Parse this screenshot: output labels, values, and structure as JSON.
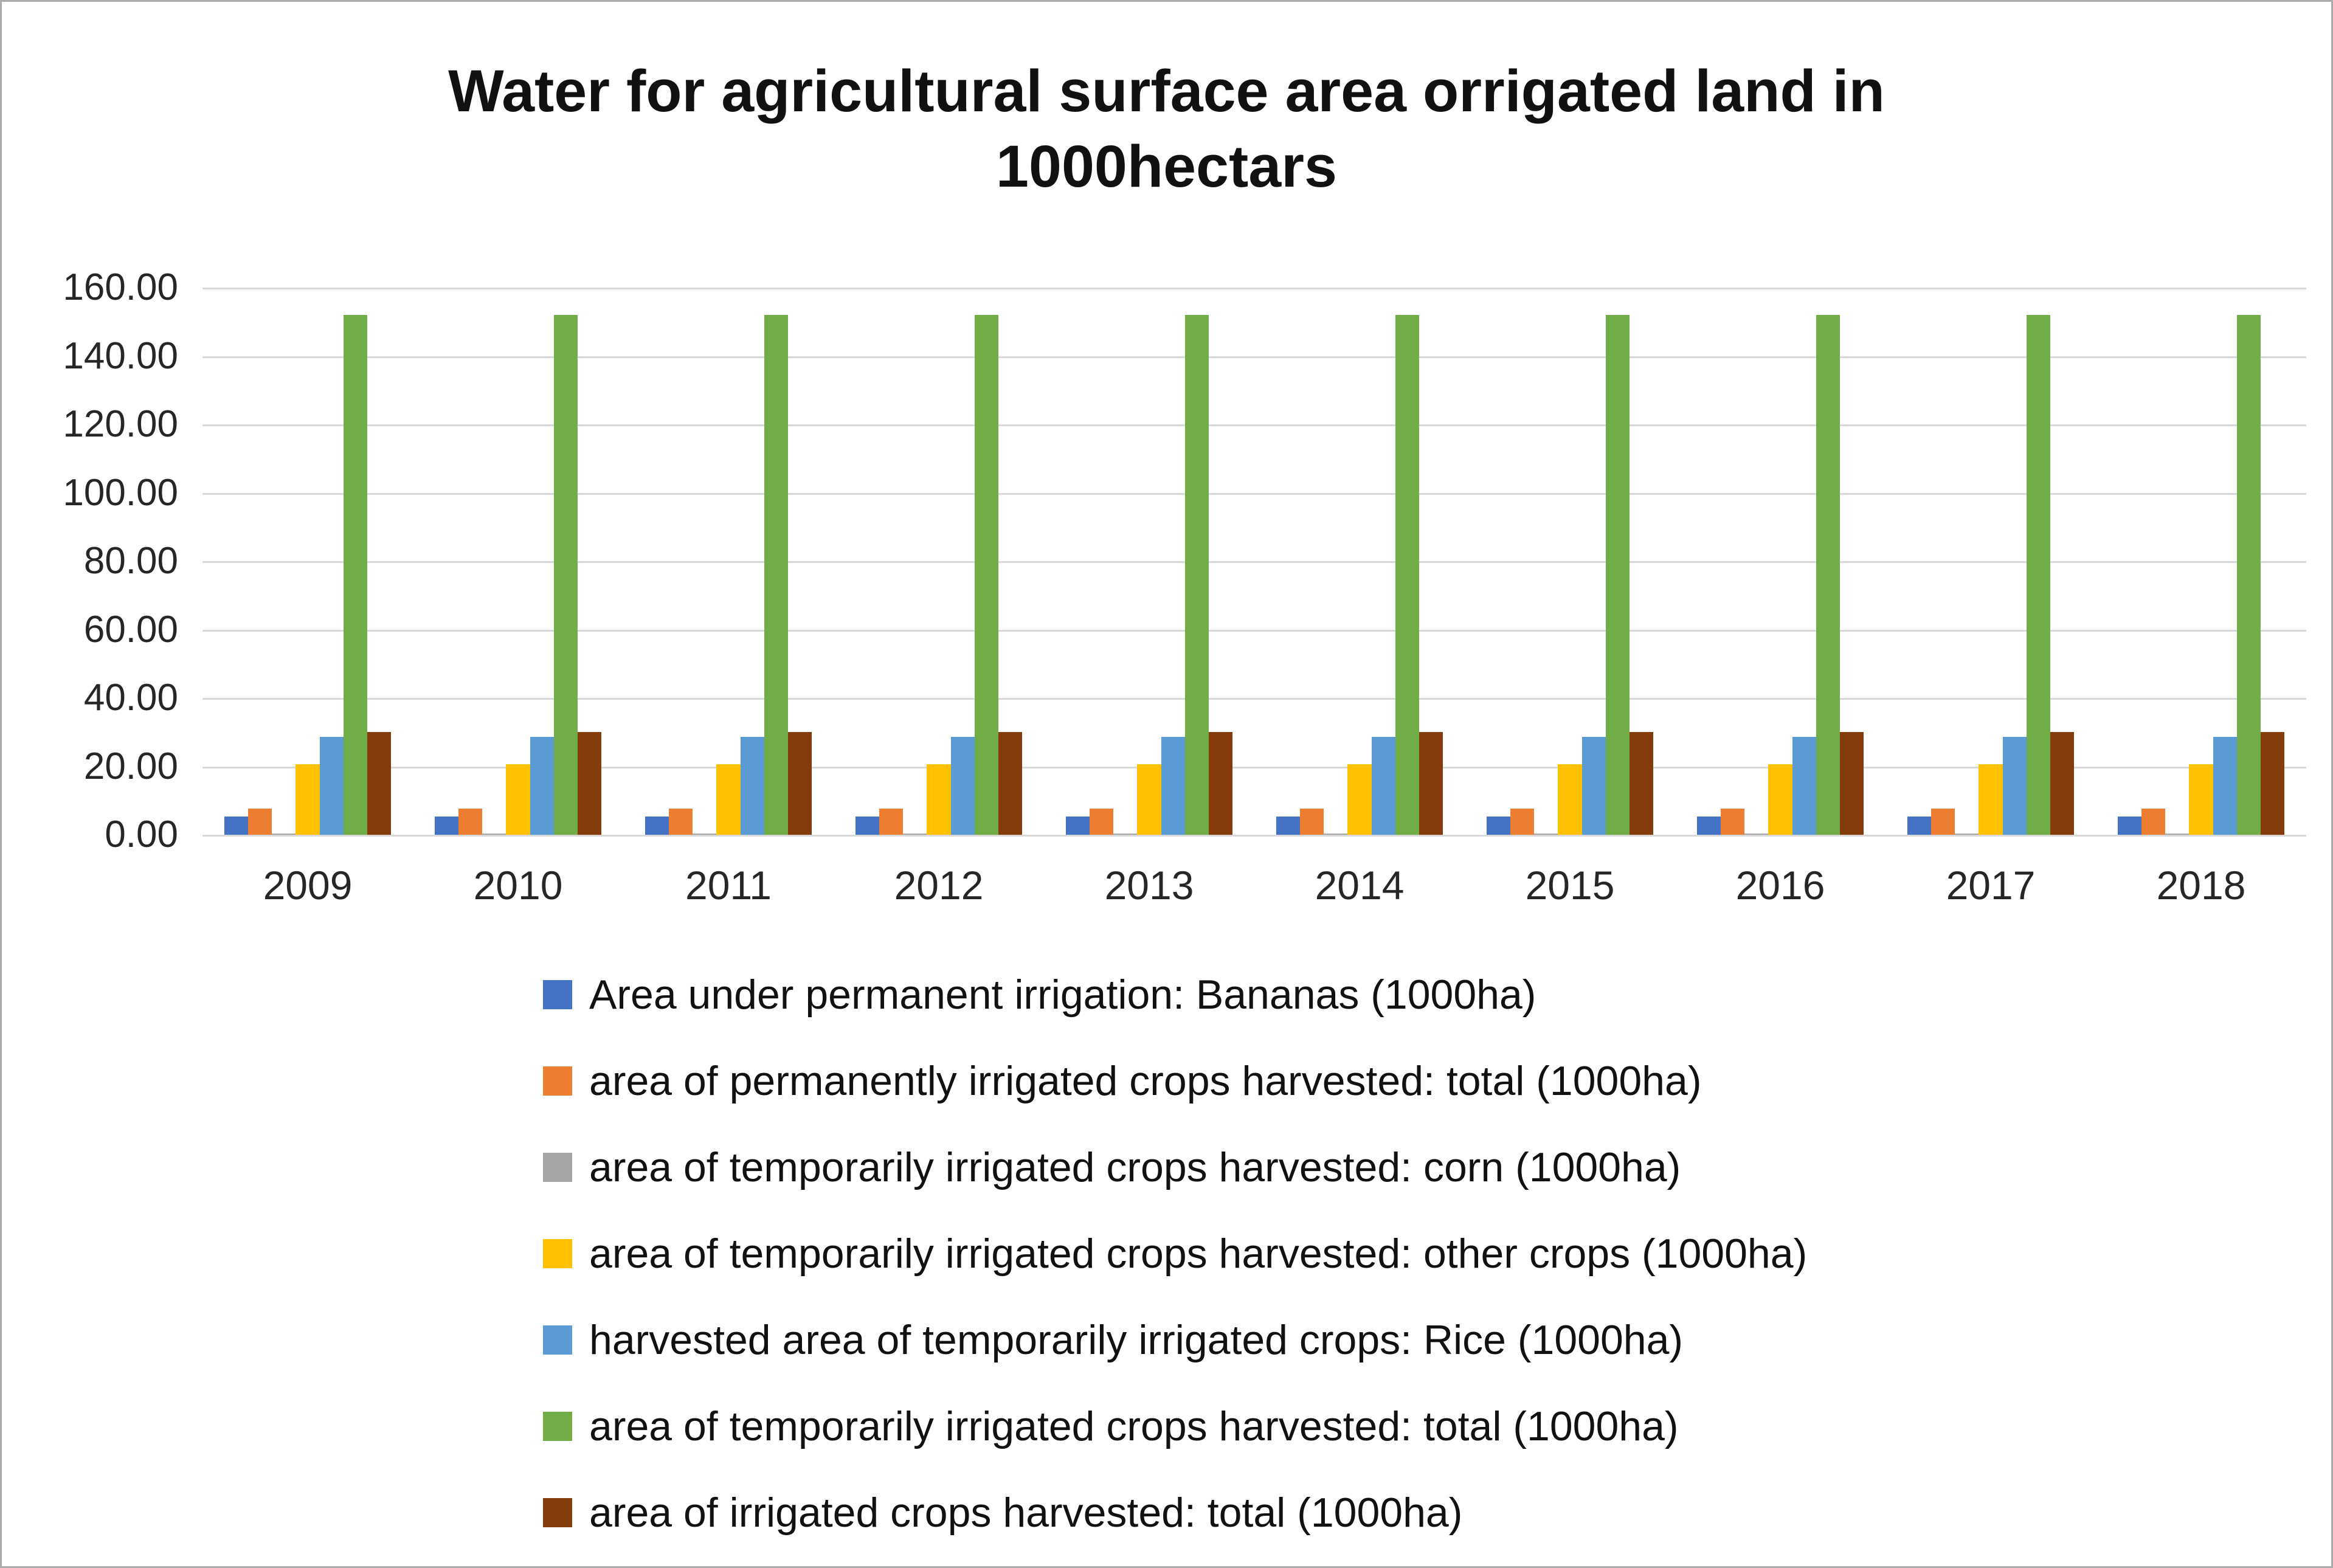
{
  "chart_data": {
    "type": "bar",
    "title": "Water for agricultural surface area orrigated land in 1000hectars",
    "categories": [
      "2009",
      "2010",
      "2011",
      "2012",
      "2013",
      "2014",
      "2015",
      "2016",
      "2017",
      "2018"
    ],
    "series": [
      {
        "name": "Area under permanent irrigation: Bananas (1000ha)",
        "color": "#4472c4",
        "values": [
          5.4,
          5.4,
          5.4,
          5.4,
          5.4,
          5.4,
          5.4,
          5.4,
          5.4,
          5.4
        ]
      },
      {
        "name": "area of permanently irrigated crops harvested: total (1000ha)",
        "color": "#ed7d31",
        "values": [
          7.6,
          7.6,
          7.6,
          7.6,
          7.6,
          7.6,
          7.6,
          7.6,
          7.6,
          7.6
        ]
      },
      {
        "name": "area of temporarily irrigated crops harvested: corn (1000ha)",
        "color": "#a5a5a5",
        "values": [
          0.4,
          0.4,
          0.4,
          0.4,
          0.4,
          0.4,
          0.4,
          0.4,
          0.4,
          0.4
        ]
      },
      {
        "name": "area of temporarily irrigated crops harvested: other crops (1000ha)",
        "color": "#ffc000",
        "values": [
          20.6,
          20.6,
          20.6,
          20.6,
          20.6,
          20.6,
          20.6,
          20.6,
          20.6,
          20.6
        ]
      },
      {
        "name": "harvested area of temporarily irrigated crops: Rice (1000ha)",
        "color": "#5b9bd5",
        "values": [
          28.6,
          28.6,
          28.6,
          28.6,
          28.6,
          28.6,
          28.6,
          28.6,
          28.6,
          28.6
        ]
      },
      {
        "name": "area of temporarily irrigated crops harvested: total (1000ha)",
        "color": "#70ad47",
        "values": [
          152.0,
          152.0,
          152.0,
          152.0,
          152.0,
          152.0,
          152.0,
          152.0,
          152.0,
          152.0
        ]
      },
      {
        "name": "area of irrigated crops harvested: total (1000ha)",
        "color": "#843c0c",
        "values": [
          30.0,
          30.0,
          30.0,
          30.0,
          30.0,
          30.0,
          30.0,
          30.0,
          30.0,
          30.0
        ]
      }
    ],
    "ylim": [
      0,
      160
    ],
    "ytick_step": 20,
    "ytick_labels": [
      "0.00",
      "20.00",
      "40.00",
      "60.00",
      "80.00",
      "100.00",
      "120.00",
      "140.00",
      "160.00"
    ],
    "grid": true,
    "legend_position": "bottom"
  }
}
